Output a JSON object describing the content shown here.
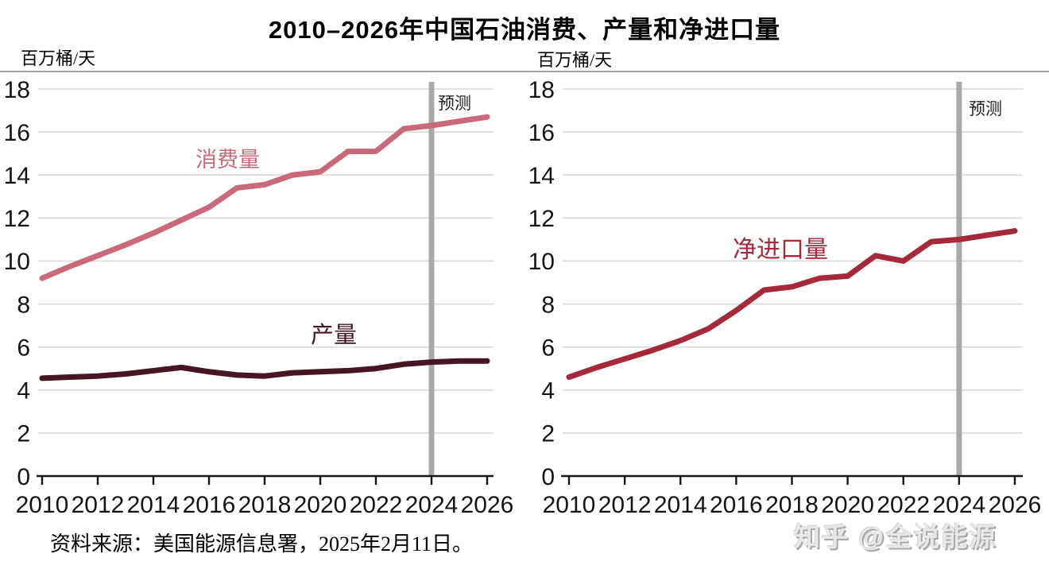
{
  "page": {
    "title": "2010–2026年中国石油消费、产量和净进口量",
    "source_note": "资料来源：美国能源信息署，2025年2月11日。",
    "watermark": "知乎 @全说能源"
  },
  "colors": {
    "grid": "#d9d9d9",
    "axis": "#161616",
    "forecast_bar": "#a9a9a9",
    "consumption": "#c9697a",
    "production": "#461622",
    "net_imports": "#a5293b"
  },
  "chart_data": [
    {
      "id": "consumption-production-chart",
      "type": "line",
      "unit_label": "百万桶/天",
      "forecast_label": "预测",
      "forecast_x": 2024,
      "grid": true,
      "ylim": [
        0,
        18
      ],
      "y_ticks": [
        0,
        2,
        4,
        6,
        8,
        10,
        12,
        14,
        16,
        18
      ],
      "x_tick_labels": [
        "2010",
        "2012",
        "2014",
        "2016",
        "2018",
        "2020",
        "2022",
        "2024",
        "2026"
      ],
      "x": [
        2010,
        2011,
        2012,
        2013,
        2014,
        2015,
        2016,
        2017,
        2018,
        2019,
        2020,
        2021,
        2022,
        2023,
        2024,
        2025,
        2026
      ],
      "series": [
        {
          "id": "consumption",
          "name": "消费量",
          "color": "#c9697a",
          "values": [
            9.2,
            9.75,
            10.25,
            10.75,
            11.3,
            11.9,
            12.5,
            13.4,
            13.55,
            14.0,
            14.15,
            15.1,
            15.1,
            16.15,
            16.3,
            16.5,
            16.7
          ]
        },
        {
          "id": "production",
          "name": "产量",
          "color": "#461622",
          "values": [
            4.55,
            4.6,
            4.65,
            4.75,
            4.9,
            5.05,
            4.85,
            4.7,
            4.65,
            4.8,
            4.85,
            4.9,
            5.0,
            5.2,
            5.3,
            5.35,
            5.35
          ]
        }
      ]
    },
    {
      "id": "net-imports-chart",
      "type": "line",
      "unit_label": "百万桶/天",
      "forecast_label": "预测",
      "forecast_x": 2024,
      "grid": true,
      "ylim": [
        0,
        18
      ],
      "y_ticks": [
        0,
        2,
        4,
        6,
        8,
        10,
        12,
        14,
        16,
        18
      ],
      "x_tick_labels": [
        "2010",
        "2012",
        "2014",
        "2016",
        "2018",
        "2020",
        "2022",
        "2024",
        "2026"
      ],
      "x": [
        2010,
        2011,
        2012,
        2013,
        2014,
        2015,
        2016,
        2017,
        2018,
        2019,
        2020,
        2021,
        2022,
        2023,
        2024,
        2025,
        2026
      ],
      "series": [
        {
          "id": "net-imports",
          "name": "净进口量",
          "color": "#a5293b",
          "values": [
            4.6,
            5.05,
            5.45,
            5.85,
            6.3,
            6.85,
            7.7,
            8.65,
            8.8,
            9.2,
            9.3,
            10.25,
            10.0,
            10.9,
            11.0,
            11.2,
            11.4
          ]
        }
      ]
    }
  ]
}
